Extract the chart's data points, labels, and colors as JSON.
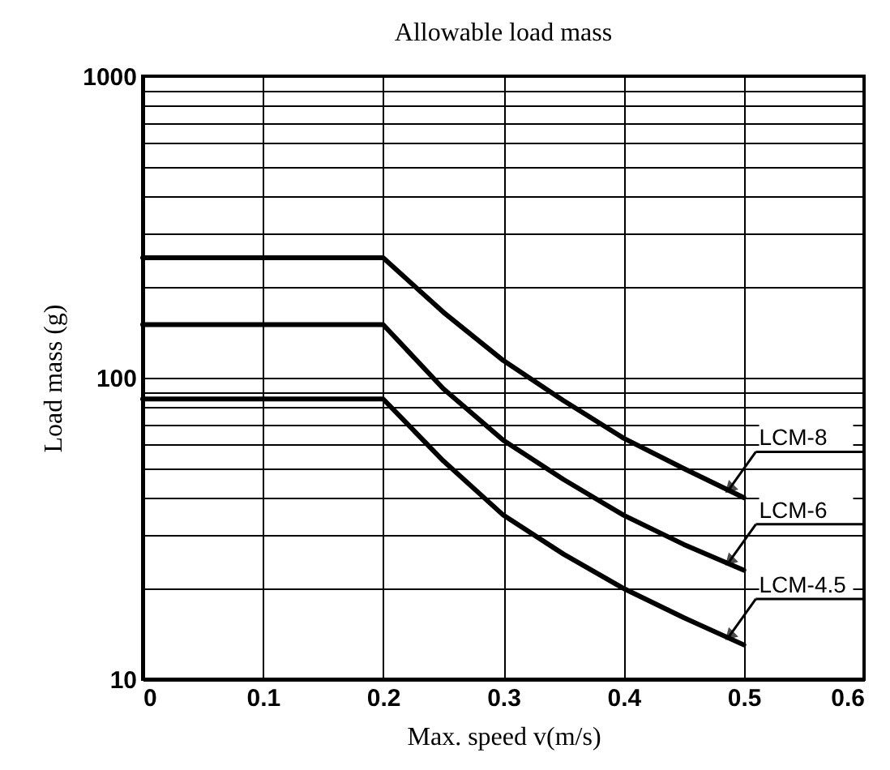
{
  "chart_data": {
    "type": "line",
    "title": "Allowable load mass",
    "xlabel": "Max. speed v(m/s)",
    "ylabel": "Load mass (g)",
    "x": [
      0,
      0.2,
      0.25,
      0.3,
      0.35,
      0.4,
      0.45,
      0.5
    ],
    "series": [
      {
        "name": "LCM-8",
        "color": "#000000",
        "values": [
          250,
          250,
          165,
          114,
          84,
          63,
          50,
          40
        ]
      },
      {
        "name": "LCM-6",
        "color": "#000000",
        "values": [
          150,
          150,
          92,
          62,
          46,
          35,
          28,
          23
        ]
      },
      {
        "name": "LCM-4.5",
        "color": "#000000",
        "values": [
          85,
          85,
          53,
          35,
          26,
          20,
          16,
          13
        ]
      }
    ],
    "xlim": [
      0,
      0.6
    ],
    "xticks": [
      0,
      0.1,
      0.2,
      0.3,
      0.4,
      0.5,
      0.6
    ],
    "ylim": [
      10,
      1000
    ],
    "log": "y",
    "yticks": [
      10,
      {
        "value": 20,
        "label": null
      },
      {
        "value": 30,
        "label": null
      },
      {
        "value": 40,
        "label": null
      },
      {
        "value": 50,
        "label": null
      },
      {
        "value": 60,
        "label": null
      },
      {
        "value": 70,
        "label": null
      },
      {
        "value": 80,
        "label": null
      },
      {
        "value": 90,
        "label": null
      },
      100,
      {
        "value": 200,
        "label": null
      },
      {
        "value": 300,
        "label": null
      },
      {
        "value": 400,
        "label": null
      },
      {
        "value": 500,
        "label": null
      },
      {
        "value": 600,
        "label": null
      },
      {
        "value": 700,
        "label": null
      },
      {
        "value": 800,
        "label": null
      },
      {
        "value": 900,
        "label": null
      },
      1000
    ],
    "grid": true,
    "legend": false,
    "marker": "none",
    "line_style": "solid"
  }
}
